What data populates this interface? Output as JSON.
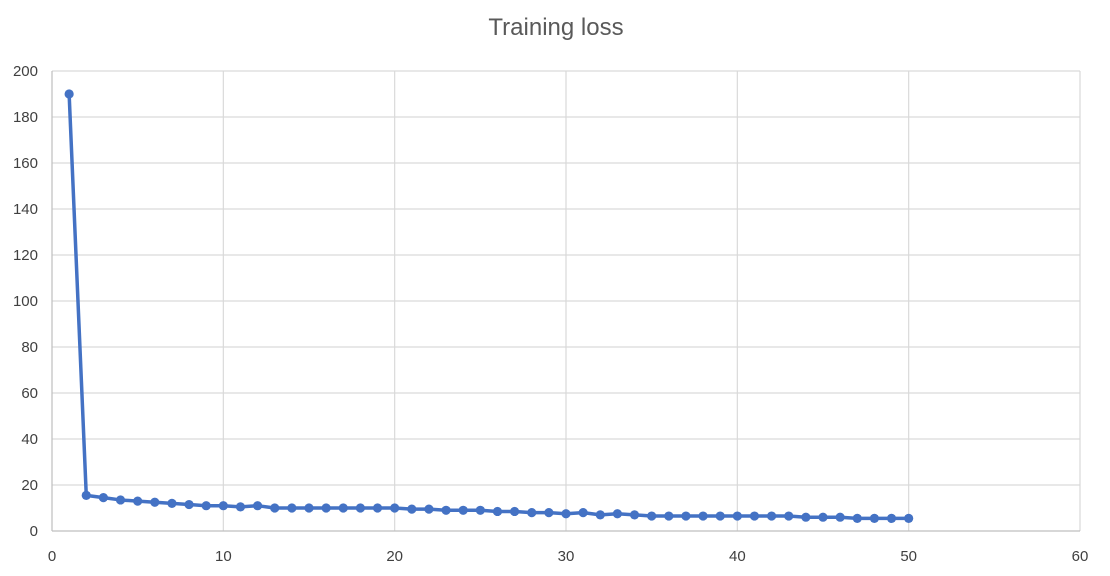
{
  "chart_data": {
    "type": "line",
    "title": "Training loss",
    "xlabel": "",
    "ylabel": "",
    "xlim": [
      0,
      60
    ],
    "ylim": [
      0,
      200
    ],
    "x_ticks": [
      0,
      10,
      20,
      30,
      40,
      50,
      60
    ],
    "y_ticks": [
      0,
      20,
      40,
      60,
      80,
      100,
      120,
      140,
      160,
      180,
      200
    ],
    "grid": true,
    "legend": "none",
    "series": [
      {
        "color": "#4472C4",
        "marker": "circle",
        "x": [
          1,
          2,
          3,
          4,
          5,
          6,
          7,
          8,
          9,
          10,
          11,
          12,
          13,
          14,
          15,
          16,
          17,
          18,
          19,
          20,
          21,
          22,
          23,
          24,
          25,
          26,
          27,
          28,
          29,
          30,
          31,
          32,
          33,
          34,
          35,
          36,
          37,
          38,
          39,
          40,
          41,
          42,
          43,
          44,
          45,
          46,
          47,
          48,
          49,
          50
        ],
        "y": [
          190,
          15.5,
          14.5,
          13.5,
          13,
          12.5,
          12,
          11.5,
          11,
          11,
          10.5,
          11,
          10,
          10,
          10,
          10,
          10,
          10,
          10,
          10,
          9.5,
          9.5,
          9,
          9,
          9,
          8.5,
          8.5,
          8,
          8,
          7.5,
          8,
          7,
          7.5,
          7,
          6.5,
          6.5,
          6.5,
          6.5,
          6.5,
          6.5,
          6.5,
          6.5,
          6.5,
          6,
          6,
          6,
          5.5,
          5.5,
          5.5,
          5.5
        ]
      }
    ]
  }
}
